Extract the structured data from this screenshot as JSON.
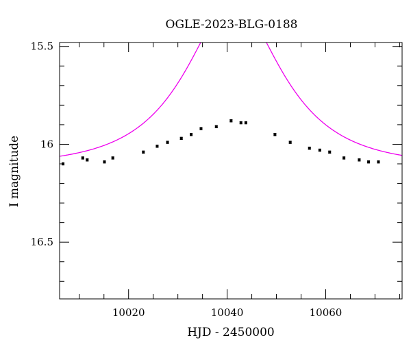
{
  "chart_data": {
    "type": "scatter",
    "title": "OGLE-2023-BLG-0188",
    "xlabel": "HJD - 2450000",
    "ylabel": "I magnitude",
    "xlim": [
      10006,
      10075.5
    ],
    "ylim": [
      16.79,
      15.48
    ],
    "y_inverted": true,
    "x_major_ticks": [
      10020,
      10040,
      10060
    ],
    "y_major_ticks": [
      15.5,
      16,
      16.5
    ],
    "x_tick_labels": [
      "10020",
      "10040",
      "10060"
    ],
    "y_tick_labels": [
      "15.5",
      "16",
      "16.5"
    ],
    "grid": false,
    "colors": {
      "model": "#ee00ee",
      "points": "#000000"
    },
    "series": [
      {
        "kind": "points",
        "x": [
          10006.7,
          10010.7,
          10011.6,
          10015.1,
          10016.8,
          10023.0,
          10025.8,
          10027.9,
          10030.7,
          10032.7,
          10034.7,
          10037.8,
          10040.8,
          10042.8,
          10043.8,
          10049.7,
          10052.8,
          10056.7,
          10058.8,
          10060.8,
          10063.7,
          10066.8,
          10068.7,
          10070.7
        ],
        "y": [
          16.1,
          16.07,
          16.08,
          16.09,
          16.07,
          16.04,
          16.01,
          15.99,
          15.97,
          15.95,
          15.92,
          15.91,
          15.88,
          15.89,
          15.89,
          15.95,
          15.99,
          16.02,
          16.03,
          16.04,
          16.07,
          16.08,
          16.09,
          16.09
        ],
        "yerr": [
          0.006,
          0.006,
          0.006,
          0.006,
          0.006,
          0.006,
          0.006,
          0.006,
          0.006,
          0.006,
          0.006,
          0.006,
          0.006,
          0.006,
          0.006,
          0.006,
          0.006,
          0.006,
          0.006,
          0.006,
          0.006,
          0.006,
          0.006,
          0.006
        ]
      },
      {
        "kind": "model",
        "t0": 10041.3,
        "u0": 0.5,
        "tE": 16.5,
        "baseline_mag": 16.11
      }
    ]
  }
}
